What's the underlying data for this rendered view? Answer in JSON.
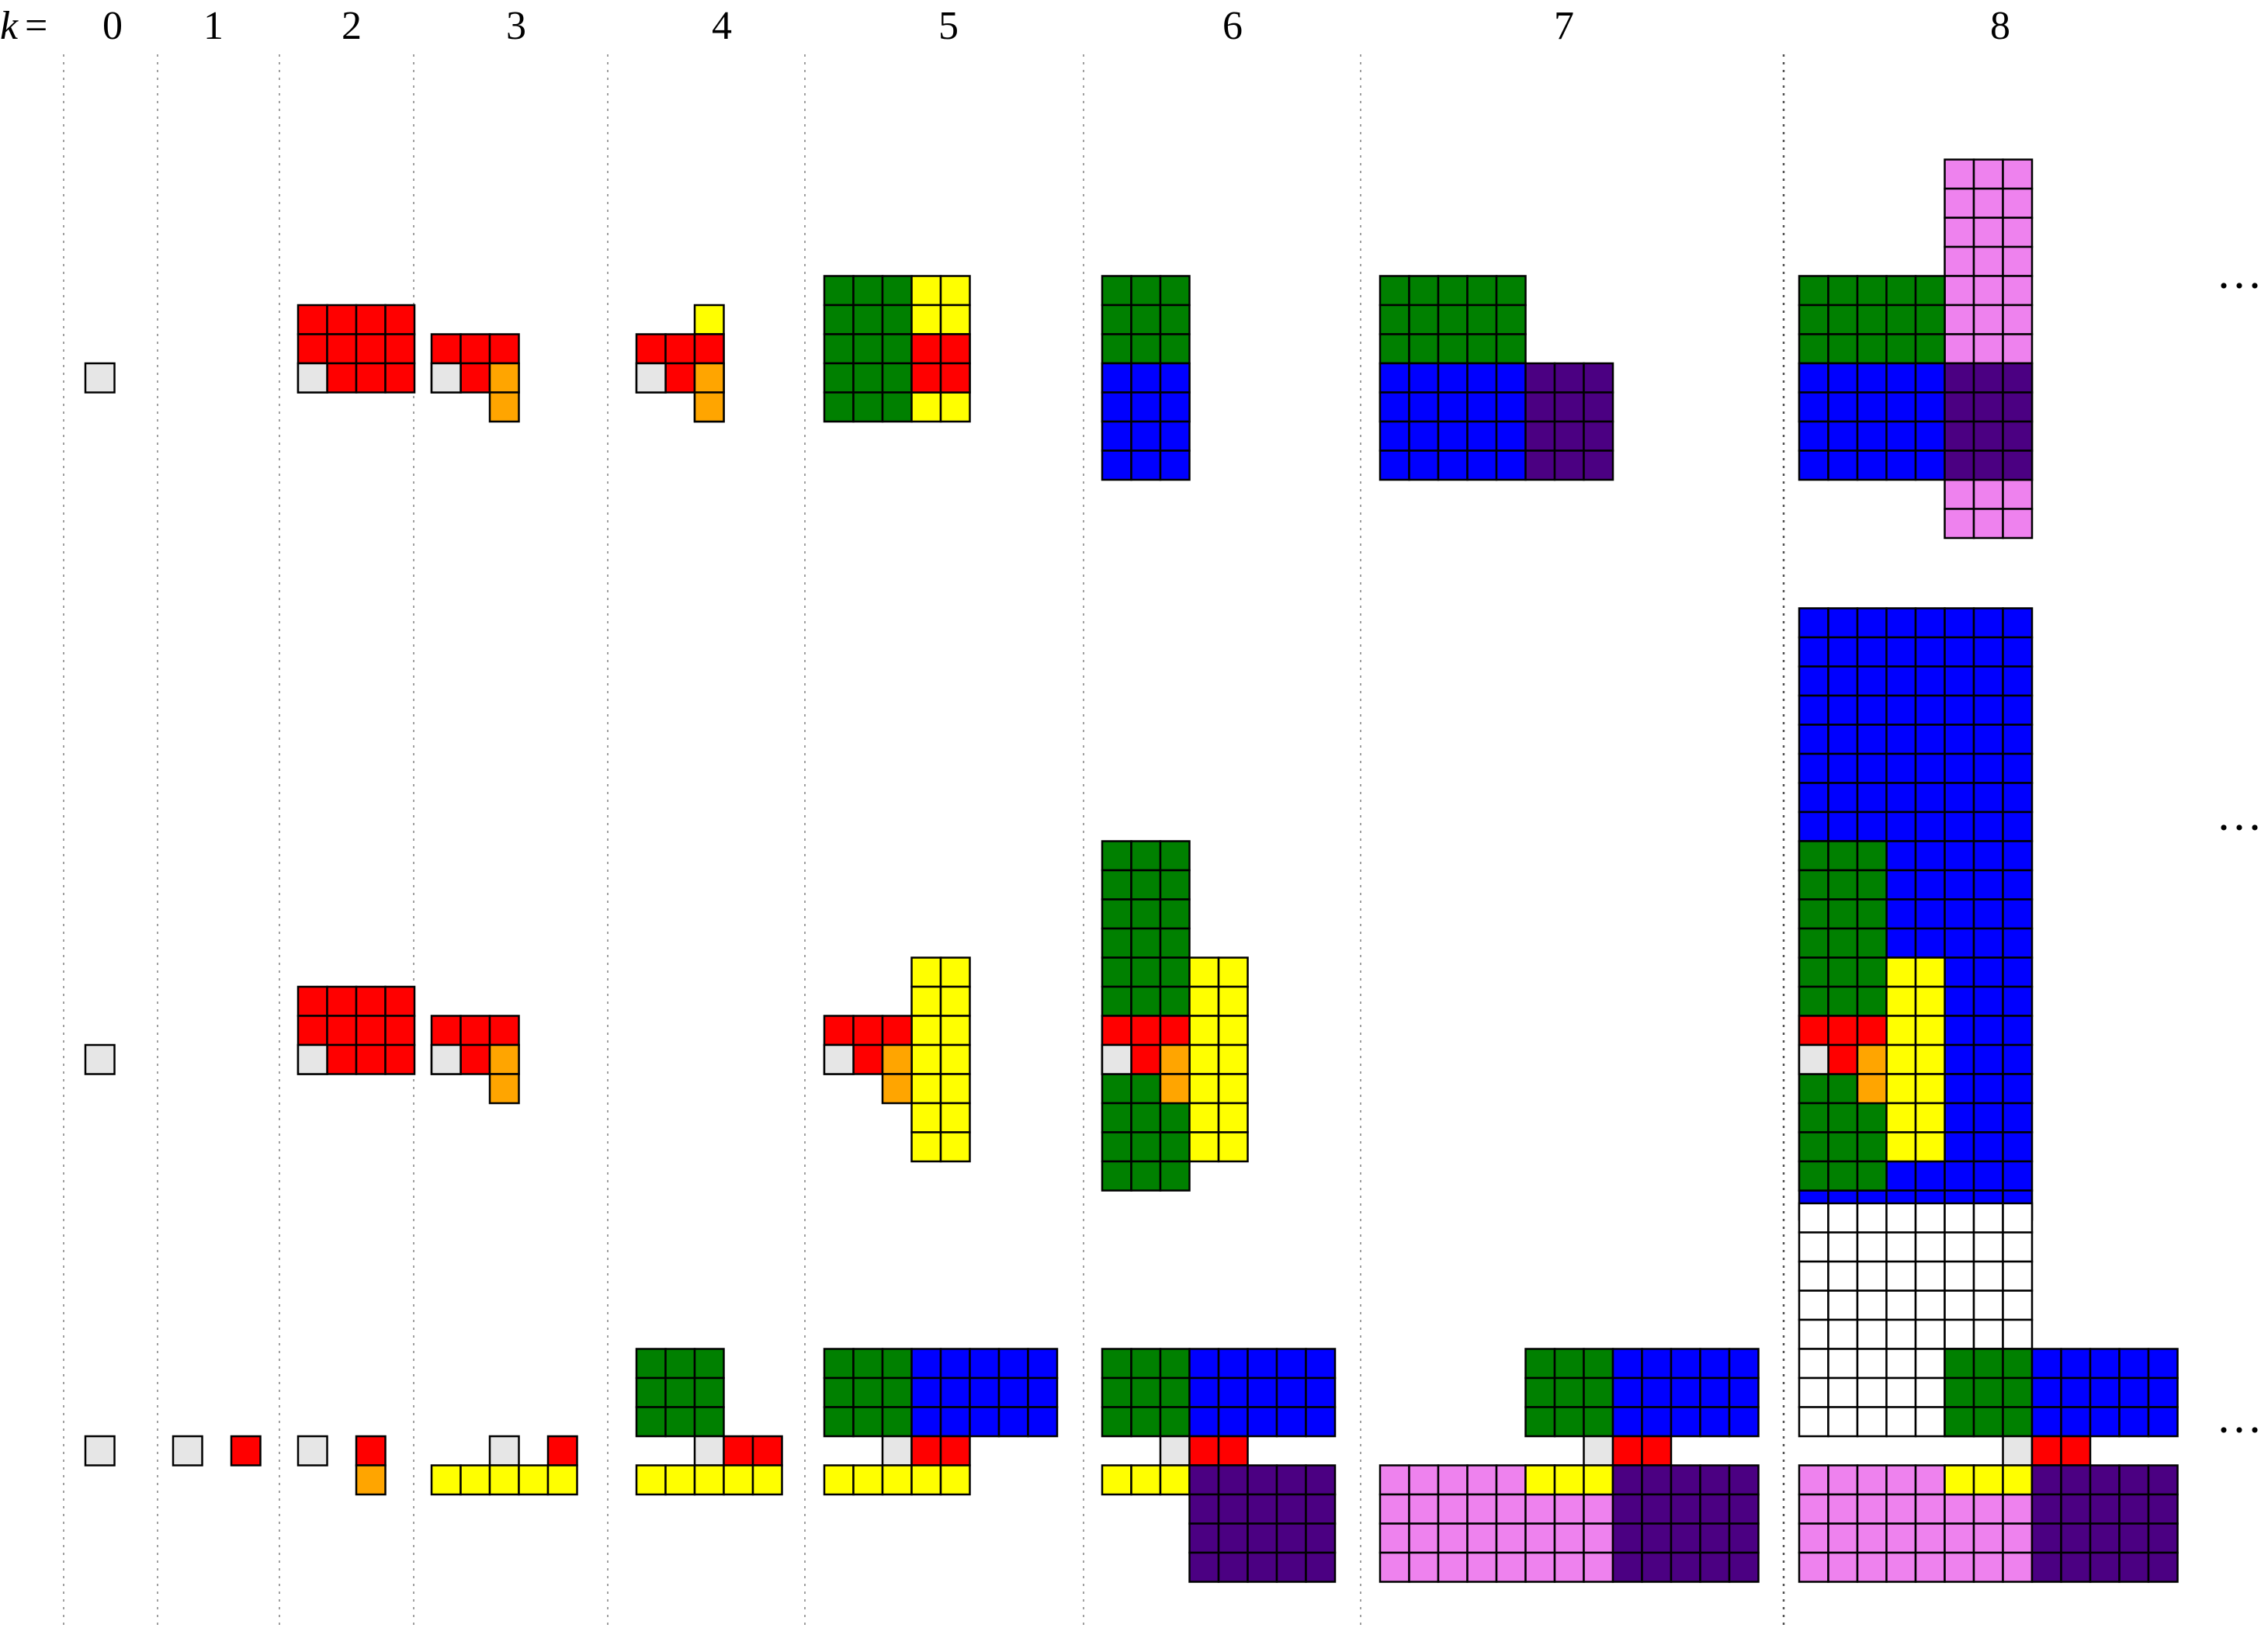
{
  "header": {
    "k_label": "k",
    "equals": "=",
    "columns": [
      "0",
      "1",
      "2",
      "3",
      "4",
      "5",
      "6",
      "7",
      "8"
    ]
  },
  "ellipsis": "···",
  "colors": {
    "light_gray": "#e6e6e6",
    "gray": "#b3b3b3",
    "red": "#ff0000",
    "orange": "#ffa500",
    "yellow": "#ffff00",
    "green": "#008000",
    "blue": "#0000ff",
    "indigo": "#4b0082",
    "violet": "#ee82ee",
    "white": "#ffffff"
  },
  "rows": [
    {
      "name": "row-1",
      "tiles": [
        {
          "k": 0,
          "blocks": [
            [
              "light_gray",
              0,
              0,
              1,
              1
            ],
            [
              "gray",
              0,
              1,
              2,
              1
            ]
          ]
        },
        {
          "k": 2,
          "blocks": [
            [
              "red",
              0,
              -2,
              4,
              1
            ],
            [
              "light_gray",
              0,
              0,
              1,
              1
            ],
            [
              "gray",
              0,
              1,
              2,
              1
            ]
          ]
        },
        {
          "k": 3,
          "blocks": [
            [
              "red",
              0,
              -1,
              3,
              1
            ],
            [
              "light_gray",
              0,
              0,
              1,
              1
            ],
            [
              "gray",
              0,
              1,
              2,
              1
            ],
            [
              "orange",
              2,
              0,
              3,
              2
            ]
          ]
        },
        {
          "k": 4,
          "blocks": [
            [
              "yellow",
              2,
              -2,
              3,
              2
            ],
            [
              "red",
              0,
              -1,
              3,
              1
            ],
            [
              "light_gray",
              0,
              0,
              1,
              1
            ],
            [
              "gray",
              0,
              1,
              2,
              1
            ],
            [
              "orange",
              2,
              0,
              3,
              2
            ]
          ]
        },
        {
          "k": 5,
          "blocks": [
            [
              "green",
              0,
              -3,
              3,
              2
            ],
            [
              "yellow",
              3,
              -3,
              5,
              2
            ],
            [
              "red",
              3,
              -1,
              5,
              1
            ],
            [
              "light_gray",
              3,
              0,
              1,
              1
            ],
            [
              "gray",
              3,
              1,
              5,
              1
            ],
            [
              "orange",
              5,
              0,
              5,
              2
            ]
          ]
        },
        {
          "k": 6,
          "blocks": [
            [
              "green",
              0,
              -3,
              3,
              2
            ],
            [
              "yellow",
              5,
              -3,
              3,
              2
            ],
            [
              "red",
              3,
              -1,
              3,
              1
            ],
            [
              "blue",
              0,
              0,
              3,
              4
            ],
            [
              "light_gray",
              3,
              0,
              1,
              1
            ],
            [
              "gray",
              3,
              1,
              2,
              1
            ],
            [
              "orange",
              5,
              0,
              3,
              2
            ]
          ]
        },
        {
          "k": 7,
          "blocks": [
            [
              "green",
              0,
              -3,
              5,
              2
            ],
            [
              "yellow",
              5,
              -3,
              3,
              2
            ],
            [
              "red",
              3,
              -1,
              3,
              1
            ],
            [
              "blue",
              0,
              0,
              5,
              4
            ],
            [
              "light_gray",
              3,
              0,
              1,
              1
            ],
            [
              "gray",
              3,
              1,
              2,
              1
            ],
            [
              "orange",
              5,
              0,
              3,
              2
            ],
            [
              "indigo",
              5,
              0,
              8,
              4
            ]
          ]
        },
        {
          "k": 8,
          "blocks": [
            [
              "violet",
              5,
              -7,
              8,
              6
            ],
            [
              "green",
              0,
              -3,
              5,
              2
            ],
            [
              "yellow",
              5,
              -3,
              3,
              2
            ],
            [
              "red",
              3,
              -1,
              3,
              1
            ],
            [
              "blue",
              0,
              0,
              5,
              4
            ],
            [
              "light_gray",
              3,
              0,
              1,
              1
            ],
            [
              "gray",
              3,
              1,
              2,
              1
            ],
            [
              "orange",
              5,
              0,
              3,
              2
            ],
            [
              "indigo",
              5,
              0,
              8,
              4
            ]
          ]
        }
      ]
    },
    {
      "name": "row-2",
      "tiles": [
        {
          "k": 0,
          "blocks": [
            [
              "light_gray",
              0,
              0,
              1,
              1
            ],
            [
              "gray",
              0,
              1,
              2,
              1
            ]
          ]
        },
        {
          "k": 2,
          "blocks": [
            [
              "red",
              0,
              -2,
              4,
              1
            ],
            [
              "light_gray",
              0,
              0,
              1,
              1
            ],
            [
              "gray",
              0,
              1,
              2,
              1
            ]
          ]
        },
        {
          "k": 3,
          "blocks": [
            [
              "red",
              0,
              -1,
              3,
              1
            ],
            [
              "light_gray",
              0,
              0,
              1,
              1
            ],
            [
              "gray",
              0,
              1,
              2,
              1
            ],
            [
              "orange",
              2,
              0,
              3,
              2
            ]
          ]
        },
        {
          "k": 5,
          "blocks": [
            [
              "yellow",
              3,
              -3,
              5,
              4
            ],
            [
              "red",
              0,
              -1,
              3,
              1
            ],
            [
              "light_gray",
              0,
              0,
              1,
              1
            ],
            [
              "gray",
              0,
              1,
              2,
              1
            ],
            [
              "orange",
              2,
              0,
              3,
              2
            ]
          ]
        },
        {
          "k": 6,
          "blocks": [
            [
              "green",
              0,
              -7,
              3,
              5
            ],
            [
              "yellow",
              3,
              -3,
              5,
              4
            ],
            [
              "red",
              0,
              -1,
              3,
              1
            ],
            [
              "light_gray",
              0,
              0,
              1,
              1
            ],
            [
              "gray",
              0,
              1,
              2,
              1
            ],
            [
              "orange",
              2,
              0,
              3,
              2
            ]
          ]
        },
        {
          "k": 8,
          "blocks": [
            [
              "blue",
              0,
              -15,
              8,
              6
            ],
            [
              "green",
              0,
              -7,
              3,
              5
            ],
            [
              "yellow",
              3,
              -3,
              5,
              4
            ],
            [
              "red",
              0,
              -1,
              3,
              1
            ],
            [
              "light_gray",
              0,
              0,
              1,
              1
            ],
            [
              "gray",
              0,
              1,
              2,
              1
            ],
            [
              "orange",
              2,
              0,
              3,
              2
            ]
          ]
        }
      ]
    },
    {
      "name": "row-3",
      "tiles": [
        {
          "k": 0,
          "blocks": [
            [
              "light_gray",
              0,
              0,
              1,
              1
            ],
            [
              "gray",
              0,
              1,
              2,
              1
            ]
          ]
        },
        {
          "k": 1,
          "blocks": [
            [
              "light_gray",
              0,
              0,
              1,
              1
            ],
            [
              "gray",
              0,
              1,
              2,
              1
            ],
            [
              "red",
              2,
              0,
              3,
              1
            ]
          ]
        },
        {
          "k": 2,
          "blocks": [
            [
              "light_gray",
              0,
              0,
              1,
              1
            ],
            [
              "gray",
              0,
              1,
              2,
              1
            ],
            [
              "red",
              2,
              0,
              3,
              1
            ],
            [
              "orange",
              2,
              1,
              3,
              2
            ]
          ]
        },
        {
          "k": 3,
          "blocks": [
            [
              "light_gray",
              2,
              0,
              3,
              1
            ],
            [
              "gray",
              2,
              1,
              4,
              1
            ],
            [
              "red",
              4,
              0,
              5,
              1
            ],
            [
              "yellow",
              0,
              1,
              5,
              2
            ]
          ]
        },
        {
          "k": 4,
          "blocks": [
            [
              "green",
              0,
              -3,
              3,
              0
            ],
            [
              "light_gray",
              2,
              0,
              3,
              1
            ],
            [
              "gray",
              2,
              1,
              4,
              1
            ],
            [
              "red",
              3,
              0,
              5,
              1
            ],
            [
              "yellow",
              0,
              1,
              5,
              2
            ]
          ]
        },
        {
          "k": 5,
          "blocks": [
            [
              "green",
              0,
              -3,
              3,
              0
            ],
            [
              "blue",
              3,
              -3,
              8,
              0
            ],
            [
              "light_gray",
              2,
              0,
              3,
              1
            ],
            [
              "gray",
              2,
              1,
              4,
              1
            ],
            [
              "red",
              3,
              0,
              5,
              1
            ],
            [
              "yellow",
              0,
              1,
              5,
              2
            ]
          ]
        },
        {
          "k": 6,
          "blocks": [
            [
              "green",
              0,
              -3,
              3,
              0
            ],
            [
              "blue",
              3,
              -3,
              8,
              0
            ],
            [
              "light_gray",
              2,
              0,
              3,
              1
            ],
            [
              "gray",
              2,
              1,
              4,
              1
            ],
            [
              "red",
              3,
              0,
              5,
              1
            ],
            [
              "yellow",
              0,
              1,
              5,
              2
            ],
            [
              "indigo",
              3,
              1,
              8,
              5
            ]
          ]
        },
        {
          "k": 7,
          "blocks": [
            [
              "green",
              5,
              -3,
              8,
              0
            ],
            [
              "blue",
              8,
              -3,
              13,
              0
            ],
            [
              "violet",
              0,
              1,
              8,
              5
            ],
            [
              "light_gray",
              7,
              0,
              8,
              1
            ],
            [
              "gray",
              7,
              1,
              9,
              1
            ],
            [
              "red",
              8,
              0,
              10,
              1
            ],
            [
              "yellow",
              5,
              1,
              10,
              2
            ],
            [
              "indigo",
              8,
              1,
              13,
              5
            ]
          ]
        },
        {
          "k": 8,
          "blocks": [
            [
              "white",
              0,
              -8,
              8,
              0
            ],
            [
              "green",
              5,
              -3,
              8,
              0
            ],
            [
              "blue",
              8,
              -3,
              13,
              0
            ],
            [
              "violet",
              0,
              1,
              8,
              5
            ],
            [
              "light_gray",
              7,
              0,
              8,
              1
            ],
            [
              "gray",
              7,
              1,
              9,
              1
            ],
            [
              "red",
              8,
              0,
              10,
              1
            ],
            [
              "yellow",
              5,
              1,
              10,
              2
            ],
            [
              "indigo",
              8,
              1,
              13,
              5
            ]
          ]
        }
      ]
    }
  ]
}
